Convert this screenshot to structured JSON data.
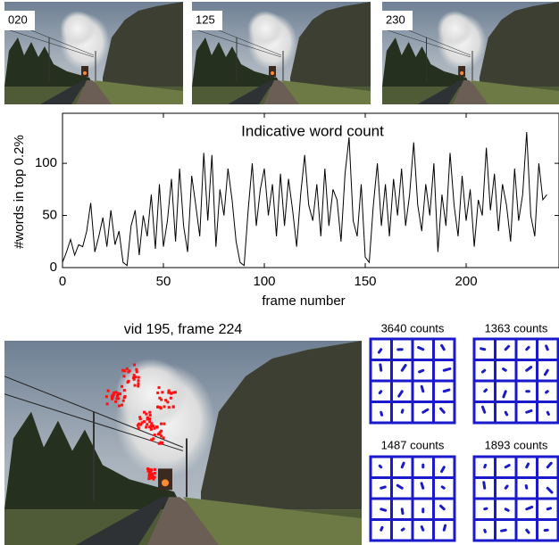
{
  "thumbnails": [
    "020",
    "125",
    "230"
  ],
  "chart_data": {
    "type": "line",
    "title": "Indicative word count",
    "xlabel": "frame number",
    "ylabel": "#words in top 0.2%",
    "x": [
      0,
      2,
      4,
      6,
      8,
      10,
      12,
      14,
      16,
      18,
      20,
      22,
      24,
      26,
      28,
      30,
      32,
      34,
      36,
      38,
      40,
      42,
      44,
      46,
      48,
      50,
      52,
      54,
      56,
      58,
      60,
      62,
      64,
      66,
      68,
      70,
      72,
      74,
      76,
      78,
      80,
      82,
      84,
      86,
      88,
      90,
      92,
      94,
      96,
      98,
      100,
      102,
      104,
      106,
      108,
      110,
      112,
      114,
      116,
      118,
      120,
      122,
      124,
      126,
      128,
      130,
      132,
      134,
      136,
      138,
      140,
      142,
      144,
      146,
      148,
      150,
      152,
      154,
      156,
      158,
      160,
      162,
      164,
      166,
      168,
      170,
      172,
      174,
      176,
      178,
      180,
      182,
      184,
      186,
      188,
      190,
      192,
      194,
      196,
      198,
      200,
      202,
      204,
      206,
      208,
      210,
      212,
      214,
      216,
      218,
      220,
      222,
      224,
      226,
      228,
      230,
      232,
      234,
      236,
      238,
      240
    ],
    "series": [
      {
        "name": "word count",
        "color": "#000000",
        "values": [
          5,
          15,
          27,
          12,
          22,
          20,
          35,
          62,
          15,
          30,
          48,
          20,
          55,
          22,
          35,
          5,
          2,
          40,
          55,
          12,
          50,
          30,
          70,
          18,
          80,
          20,
          45,
          85,
          25,
          95,
          40,
          15,
          88,
          60,
          30,
          110,
          45,
          108,
          20,
          75,
          50,
          95,
          65,
          25,
          5,
          2,
          55,
          100,
          40,
          75,
          95,
          50,
          80,
          30,
          90,
          40,
          85,
          55,
          20,
          70,
          108,
          60,
          45,
          80,
          30,
          95,
          40,
          75,
          65,
          25,
          90,
          125,
          45,
          30,
          80,
          10,
          5,
          60,
          100,
          40,
          80,
          30,
          85,
          50,
          95,
          40,
          70,
          120,
          60,
          35,
          80,
          50,
          100,
          15,
          70,
          40,
          110,
          60,
          30,
          88,
          45,
          75,
          20,
          65,
          50,
          115,
          55,
          90,
          35,
          80,
          60,
          25,
          95,
          45,
          70,
          130,
          50,
          30,
          100,
          65,
          70
        ]
      }
    ],
    "xlim": [
      0,
      246
    ],
    "ylim": [
      0,
      148
    ],
    "xticks": [
      0,
      50,
      100,
      150,
      200
    ],
    "yticks": [
      0,
      50,
      100
    ]
  },
  "photo_title": "vid 195, frame 224",
  "histograms": [
    "3640 counts",
    "1363 counts",
    "1487 counts",
    "1893 counts"
  ]
}
